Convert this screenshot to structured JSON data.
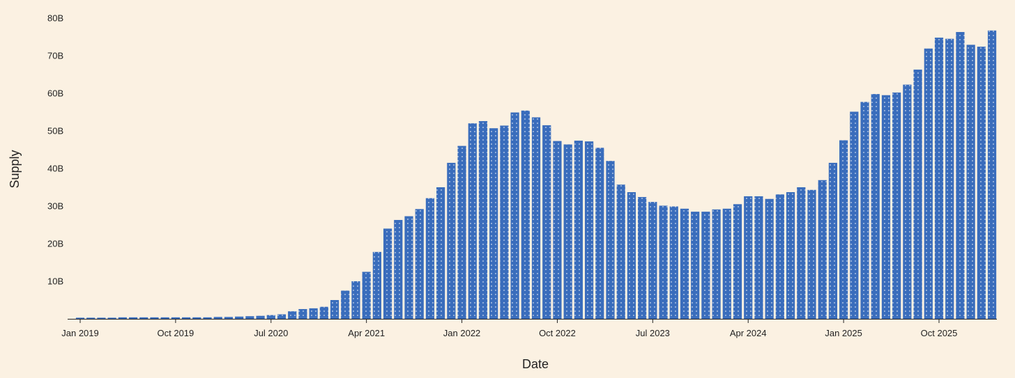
{
  "chart_data": {
    "type": "bar",
    "xlabel": "Date",
    "ylabel": "Supply",
    "ylim": [
      0,
      80
    ],
    "y_unit": "B",
    "y_ticks": [
      "10B",
      "20B",
      "30B",
      "40B",
      "50B",
      "60B",
      "70B",
      "80B"
    ],
    "x_ticks": [
      "Jan 2019",
      "Oct 2019",
      "Jul 2020",
      "Apr 2021",
      "Jan 2022",
      "Oct 2022",
      "Jul 2023",
      "Apr 2024",
      "Jan 2025",
      "Oct 2025"
    ],
    "grid": false,
    "legend": "none",
    "bar_color": "#3a6dbc",
    "dot_color": "#ffffff",
    "background": "#fbf1e2",
    "categories": [
      "2019-01",
      "2019-02",
      "2019-03",
      "2019-04",
      "2019-05",
      "2019-06",
      "2019-07",
      "2019-08",
      "2019-09",
      "2019-10",
      "2019-11",
      "2019-12",
      "2020-01",
      "2020-02",
      "2020-03",
      "2020-04",
      "2020-05",
      "2020-06",
      "2020-07",
      "2020-08",
      "2020-09",
      "2020-10",
      "2020-11",
      "2020-12",
      "2021-01",
      "2021-02",
      "2021-03",
      "2021-04",
      "2021-05",
      "2021-06",
      "2021-07",
      "2021-08",
      "2021-09",
      "2021-10",
      "2021-11",
      "2021-12",
      "2022-01",
      "2022-02",
      "2022-03",
      "2022-04",
      "2022-05",
      "2022-06",
      "2022-07",
      "2022-08",
      "2022-09",
      "2022-10",
      "2022-11",
      "2022-12",
      "2023-01",
      "2023-02",
      "2023-03",
      "2023-04",
      "2023-05",
      "2023-06",
      "2023-07",
      "2023-08",
      "2023-09",
      "2023-10",
      "2023-11",
      "2023-12",
      "2024-01",
      "2024-02",
      "2024-03",
      "2024-04",
      "2024-05",
      "2024-06",
      "2024-07",
      "2024-08",
      "2024-09",
      "2024-10",
      "2024-11",
      "2024-12",
      "2025-01",
      "2025-02",
      "2025-03",
      "2025-04",
      "2025-05",
      "2025-06",
      "2025-07",
      "2025-08",
      "2025-09",
      "2025-10",
      "2025-11",
      "2025-12",
      "2026-01",
      "2026-02",
      "2026-03"
    ],
    "values": [
      0.3,
      0.3,
      0.3,
      0.3,
      0.4,
      0.4,
      0.4,
      0.4,
      0.4,
      0.4,
      0.4,
      0.4,
      0.4,
      0.5,
      0.5,
      0.6,
      0.7,
      0.8,
      1.0,
      1.2,
      2.0,
      2.6,
      2.8,
      3.2,
      5.0,
      7.5,
      10.0,
      12.5,
      17.8,
      24.0,
      26.3,
      27.3,
      29.2,
      32.1,
      35.0,
      41.5,
      46.0,
      52.0,
      52.6,
      50.7,
      51.4,
      54.9,
      55.4,
      53.6,
      51.5,
      47.3,
      46.4,
      47.4,
      47.2,
      45.5,
      42.0,
      35.7,
      33.7,
      32.4,
      31.1,
      30.1,
      29.9,
      29.3,
      28.5,
      28.5,
      29.1,
      29.3,
      30.5,
      32.6,
      32.6,
      31.9,
      33.1,
      33.7,
      35.0,
      34.3,
      36.9,
      41.5,
      47.5,
      55.1,
      57.7,
      59.8,
      59.5,
      60.2,
      62.3,
      66.3,
      71.9,
      74.8,
      74.5,
      76.3,
      72.9,
      72.4,
      76.7
    ]
  }
}
